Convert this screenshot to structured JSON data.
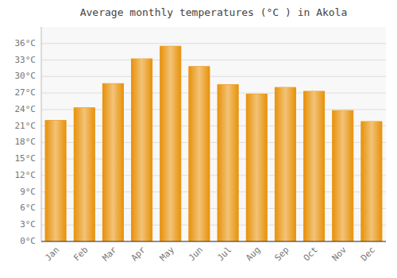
{
  "chart_data": {
    "type": "bar",
    "title": "Average monthly temperatures (°C ) in Akola",
    "categories": [
      "Jan",
      "Feb",
      "Mar",
      "Apr",
      "May",
      "Jun",
      "Jul",
      "Aug",
      "Sep",
      "Oct",
      "Nov",
      "Dec"
    ],
    "values": [
      22.0,
      24.3,
      28.7,
      33.2,
      35.5,
      31.8,
      28.5,
      26.8,
      28.0,
      27.3,
      23.8,
      21.8
    ],
    "color": "#E8920A",
    "ylim": [
      0,
      39
    ],
    "yticks": [
      {
        "value": 0,
        "label": "0°C"
      },
      {
        "value": 3,
        "label": "3°C"
      },
      {
        "value": 6,
        "label": "6°C"
      },
      {
        "value": 9,
        "label": "9°C"
      },
      {
        "value": 12,
        "label": "12°C"
      },
      {
        "value": 15,
        "label": "15°C"
      },
      {
        "value": 18,
        "label": "18°C"
      },
      {
        "value": 21,
        "label": "21°C"
      },
      {
        "value": 24,
        "label": "24°C"
      },
      {
        "value": 27,
        "label": "27°C"
      },
      {
        "value": 30,
        "label": "30°C"
      },
      {
        "value": 33,
        "label": "33°C"
      },
      {
        "value": 36,
        "label": "36°C"
      }
    ],
    "grid": true
  }
}
